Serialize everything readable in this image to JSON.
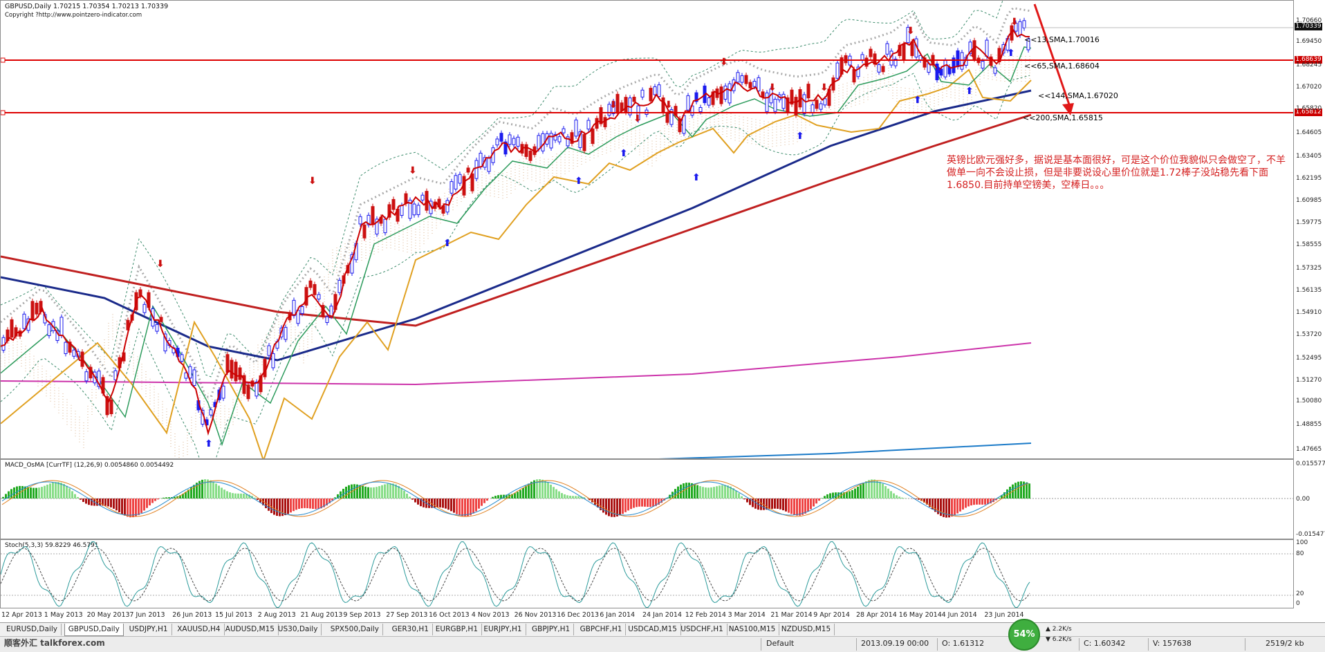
{
  "chart": {
    "title_line": "GBPUSD,Daily  1.70215 1.70354 1.70213 1.70339",
    "copyright": "Copyright ?http://www.pointzero-indicator.com",
    "current_price": "1.70339",
    "price_ticks": [
      "1.70660",
      "1.69450",
      "1.68245",
      "1.67020",
      "1.65820",
      "1.64605",
      "1.63405",
      "1.62195",
      "1.60985",
      "1.59775",
      "1.58555",
      "1.57325",
      "1.56135",
      "1.54910",
      "1.53720",
      "1.52495",
      "1.51270",
      "1.50080",
      "1.48855",
      "1.47665"
    ],
    "levels": [
      {
        "label": "1.68639",
        "color": "#cc0000"
      },
      {
        "label": "1.65812",
        "color": "#cc0000"
      }
    ],
    "sma_labels": [
      {
        "text": "<<13,SMA,1.70016",
        "color": "#444444"
      },
      {
        "text": "<<65,SMA,1.68604",
        "color": "#d4a020"
      },
      {
        "text": "<<144,SMA,1.67020",
        "color": "#1a3aa0"
      },
      {
        "text": "<<200,SMA,1.65815",
        "color": "#c02020"
      }
    ],
    "annotation": "英镑比欧元强好多，据说是基本面很好，可是这个价位我貌似只会做空了，不羊做单一向不会设止损，但是非要说设心里价位就是1.72棒子没站稳先看下面1.6850.目前持单空镑美，空棒日。。。"
  },
  "macd": {
    "title": "MACD_OsMA [CurrTF] (12,26,9) 0.0054860 0.0054492",
    "ticks": [
      "0.015577",
      "0.00",
      "-0.015477"
    ]
  },
  "stoch": {
    "title": "Stoch(5,3,3) 59.8229 46.5791",
    "ticks": [
      "100",
      "80",
      "20",
      "0"
    ]
  },
  "dates": [
    "12 Apr 2013",
    "1 May 2013",
    "20 May 2013",
    "7 Jun 2013",
    "26 Jun 2013",
    "15 Jul 2013",
    "2 Aug 2013",
    "21 Aug 2013",
    "9 Sep 2013",
    "27 Sep 2013",
    "16 Oct 2013",
    "4 Nov 2013",
    "26 Nov 2013",
    "16 Dec 2013",
    "6 Jan 2014",
    "24 Jan 2014",
    "12 Feb 2014",
    "3 Mar 2014",
    "21 Mar 2014",
    "9 Apr 2014",
    "28 Apr 2014",
    "16 May 2014",
    "4 Jun 2014",
    "23 Jun 2014"
  ],
  "tabs": [
    "EURUSD,Daily",
    "GBPUSD,Daily",
    "USDJPY,H1",
    "XAUUSD,H4",
    "AUDUSD,M15",
    "US30,Daily",
    "SPX500,Daily",
    "GER30,H1",
    "EURGBP,H1",
    "EURJPY,H1",
    "GBPJPY,H1",
    "GBPCHF,H1",
    "USDCAD,M15",
    "USDCHF,H1",
    "NAS100,M15",
    "NZDUSD,M15"
  ],
  "active_tab": 1,
  "status": {
    "profile": "Default",
    "datetime": "2013.09.19 00:00",
    "open": "O: 1.61312",
    "close": "C: 1.60342",
    "volume": "V: 157638",
    "traffic": "2519/2 kb",
    "gauge": "54%",
    "speed_up": "2.2K/s",
    "speed_down": "6.2K/s",
    "watermark": "顺客外汇 talkforex.com"
  }
}
